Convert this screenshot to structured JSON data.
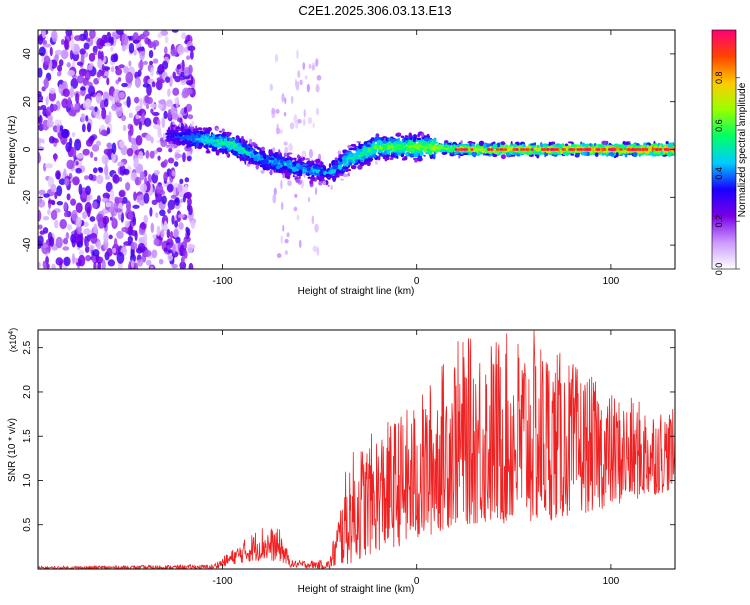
{
  "page_title": "C2E1.2025.306.03.13.E13",
  "chart_data": [
    {
      "type": "heatmap",
      "name": "spectrogram",
      "xlabel": "Height of straight line (km)",
      "ylabel": "Frequency (Hz)",
      "xlim": [
        -195,
        133
      ],
      "ylim": [
        -50,
        50
      ],
      "xticks": [
        -100,
        0,
        100
      ],
      "yticks": [
        -40,
        -20,
        0,
        20,
        40
      ],
      "colorbar": {
        "label": "Normalized spectral amplitude",
        "range": [
          0,
          1
        ],
        "ticks": [
          "0.0",
          "0.2",
          "0.4",
          "0.6",
          "0.8"
        ],
        "tick_values": [
          0.0,
          0.2,
          0.4,
          0.6,
          0.8
        ],
        "colormap": [
          "#ffffff",
          "#cc99ff",
          "#7a00e6",
          "#1a00ff",
          "#00ccff",
          "#00ff66",
          "#99ff00",
          "#ffcc00",
          "#ff4400",
          "#ff0077"
        ]
      },
      "ridge": [
        {
          "x": -195,
          "freq": 0,
          "amp": 0.15
        },
        {
          "x": -125,
          "freq": 6,
          "amp": 0.35
        },
        {
          "x": -110,
          "freq": 4,
          "amp": 0.5
        },
        {
          "x": -95,
          "freq": 2,
          "amp": 0.55
        },
        {
          "x": -80,
          "freq": -4,
          "amp": 0.45
        },
        {
          "x": -60,
          "freq": -8,
          "amp": 0.45
        },
        {
          "x": -45,
          "freq": -10,
          "amp": 0.4
        },
        {
          "x": -35,
          "freq": -4,
          "amp": 0.55
        },
        {
          "x": -20,
          "freq": 1,
          "amp": 0.6
        },
        {
          "x": 0,
          "freq": 1,
          "amp": 0.65
        },
        {
          "x": 30,
          "freq": 0,
          "amp": 0.75
        },
        {
          "x": 60,
          "freq": 0,
          "amp": 0.8
        },
        {
          "x": 100,
          "freq": 0,
          "amp": 0.85
        },
        {
          "x": 133,
          "freq": 0,
          "amp": 0.9
        }
      ],
      "noise_region": {
        "x_start": -195,
        "x_end": -115,
        "freq_range": [
          -50,
          50
        ]
      }
    },
    {
      "type": "line",
      "name": "snr",
      "xlabel": "Height of straight line (km)",
      "ylabel": "SNR (10 * v/v)",
      "y_multiplier": "(x10^4)",
      "multiplier_base": "(x10",
      "multiplier_exp": "4",
      "multiplier_close": ")",
      "color": "#ee2222",
      "xlim": [
        -195,
        133
      ],
      "ylim": [
        0,
        2.7
      ],
      "xticks": [
        -100,
        0,
        100
      ],
      "yticks": [
        0.5,
        1.0,
        1.5,
        2.0,
        2.5
      ],
      "envelope": [
        {
          "x": -195,
          "lo": 0.0,
          "hi": 0.03
        },
        {
          "x": -105,
          "lo": 0.0,
          "hi": 0.05
        },
        {
          "x": -95,
          "lo": 0.05,
          "hi": 0.22
        },
        {
          "x": -80,
          "lo": 0.1,
          "hi": 0.5
        },
        {
          "x": -70,
          "lo": 0.08,
          "hi": 0.45
        },
        {
          "x": -65,
          "lo": 0.02,
          "hi": 0.1
        },
        {
          "x": -45,
          "lo": 0.0,
          "hi": 0.1
        },
        {
          "x": -35,
          "lo": 0.05,
          "hi": 1.3
        },
        {
          "x": -20,
          "lo": 0.2,
          "hi": 1.6
        },
        {
          "x": 0,
          "lo": 0.3,
          "hi": 1.9
        },
        {
          "x": 20,
          "lo": 0.5,
          "hi": 2.6
        },
        {
          "x": 60,
          "lo": 0.5,
          "hi": 2.7
        },
        {
          "x": 100,
          "lo": 0.7,
          "hi": 2.0
        },
        {
          "x": 133,
          "lo": 0.9,
          "hi": 1.8
        }
      ]
    }
  ]
}
